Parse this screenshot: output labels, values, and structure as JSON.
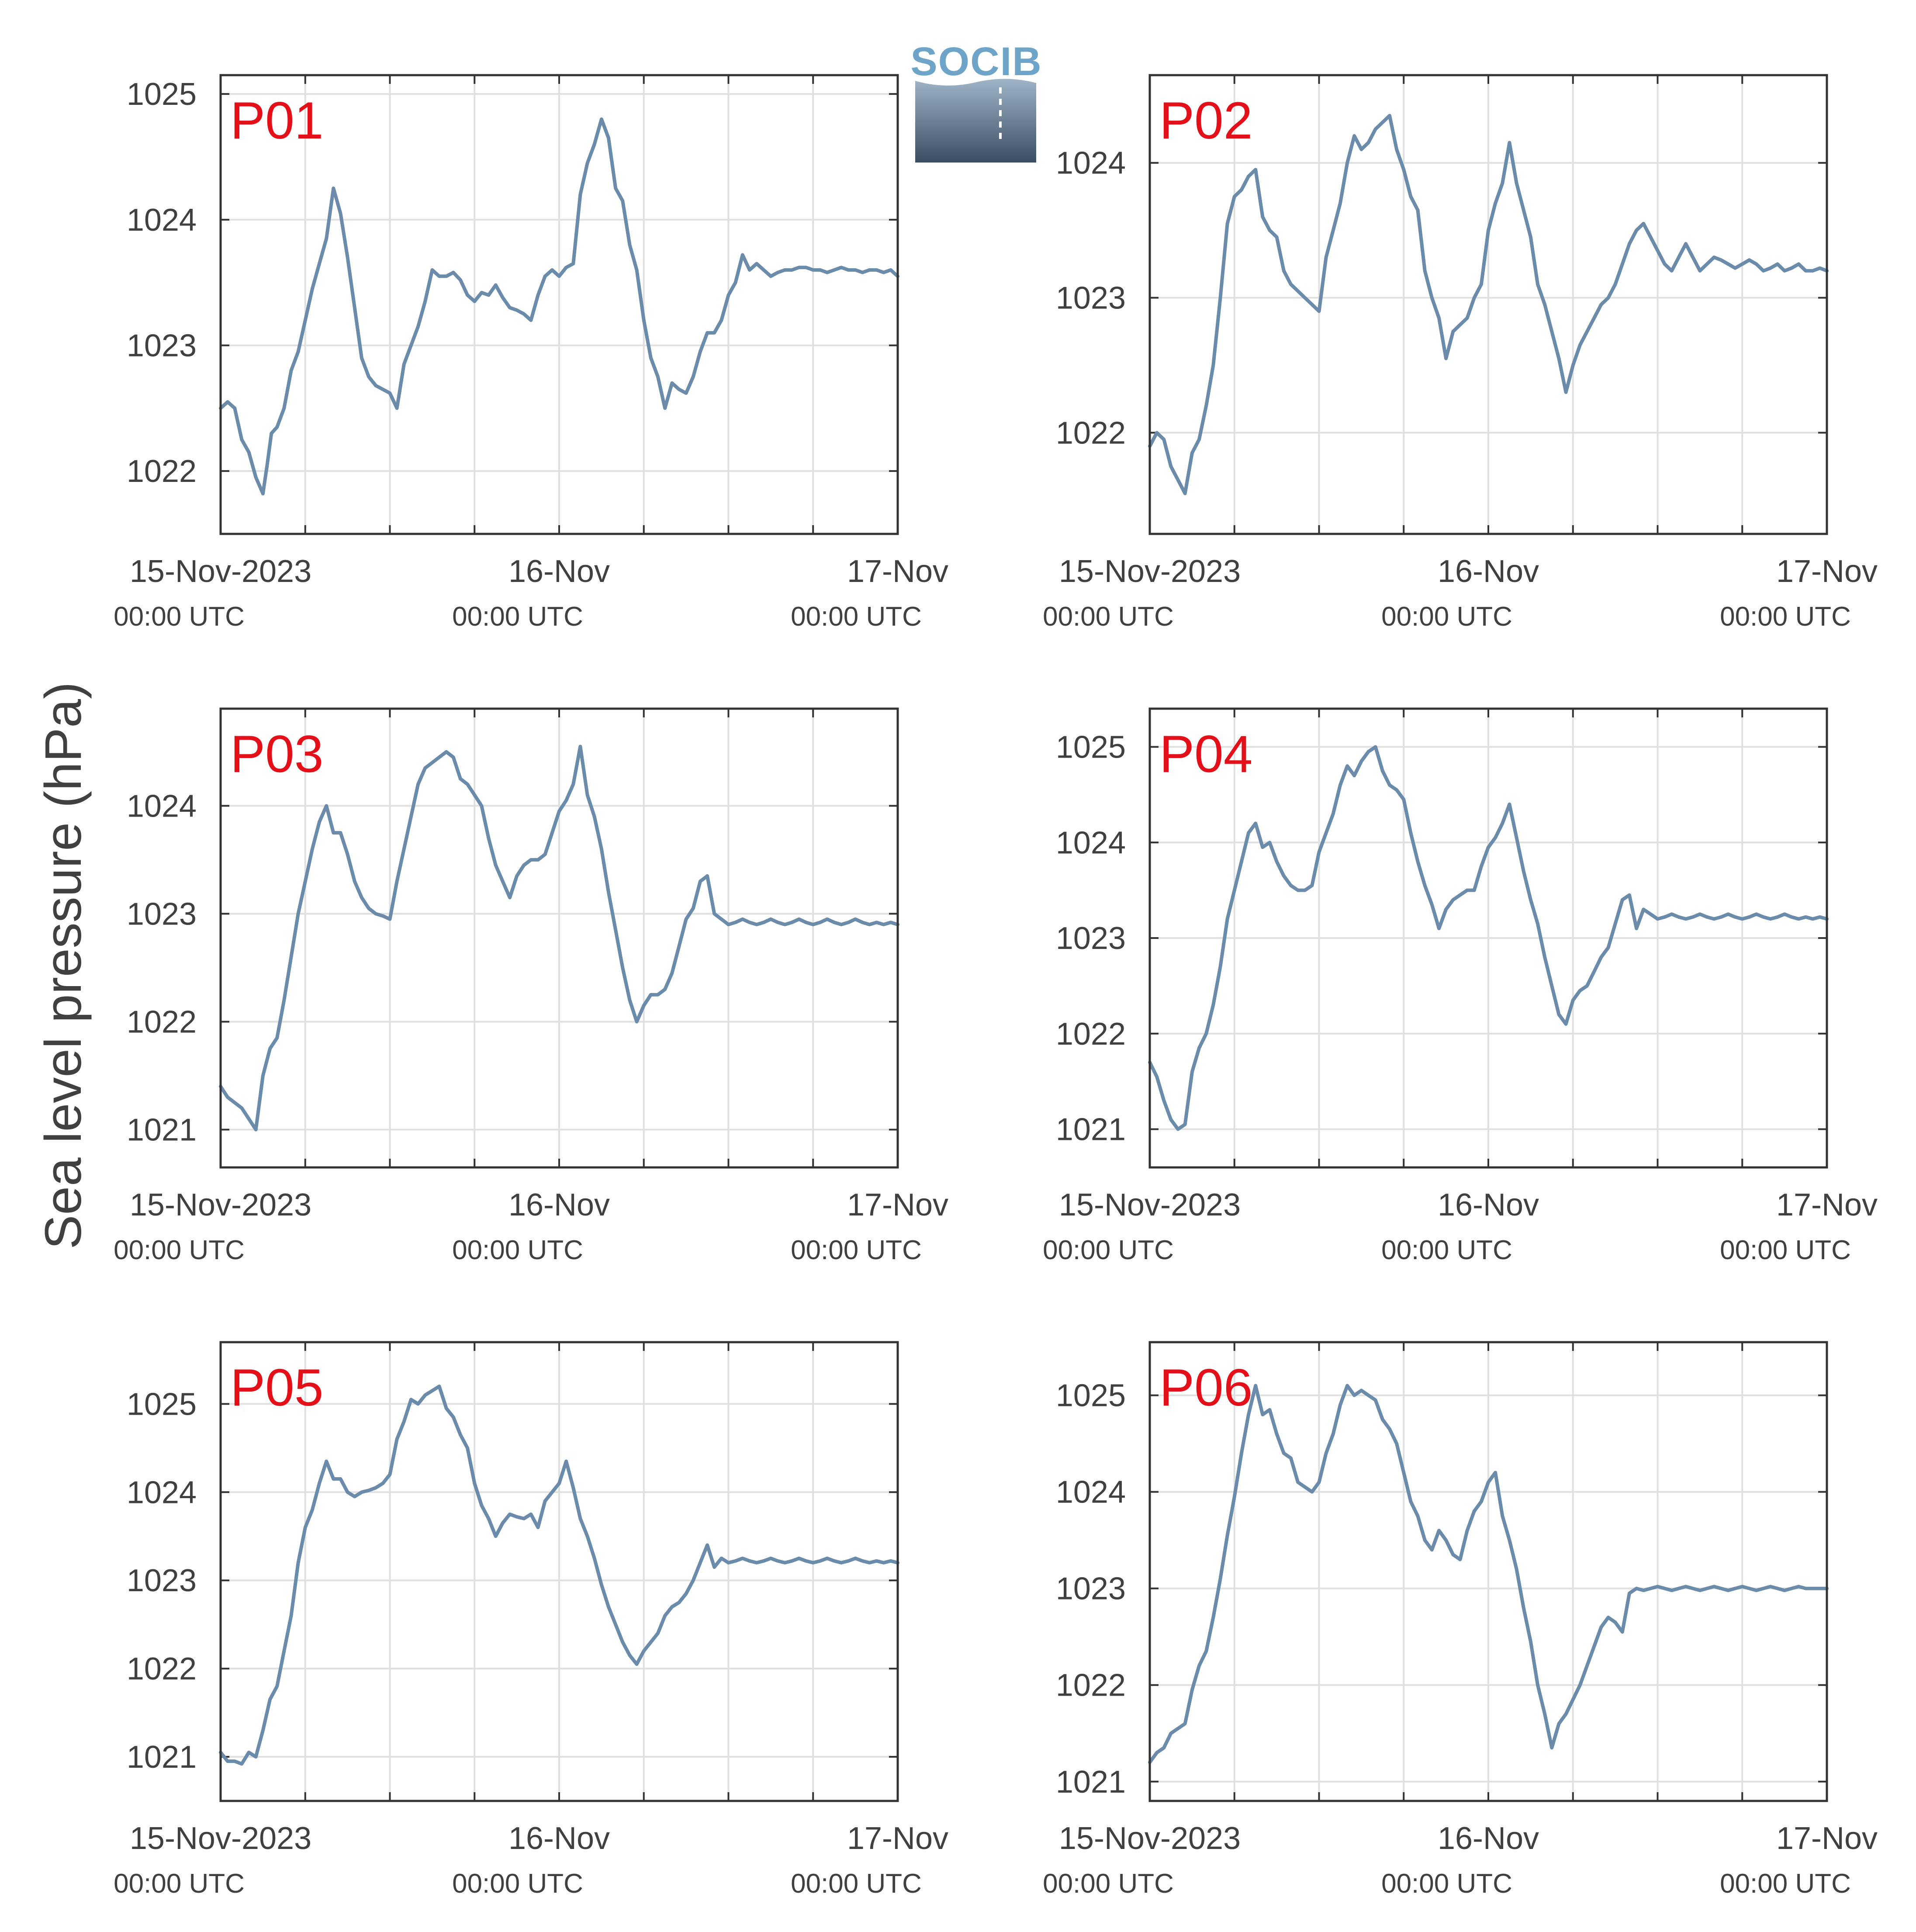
{
  "figure": {
    "ylabel": "Sea level pressure (hPa)",
    "logo_text": "SOCIB",
    "line_color": "#6b8bab",
    "tag_color": "#e3101a",
    "grid_color": "#e0e0e0",
    "frame_color": "#333333"
  },
  "x_ticks": [
    {
      "main": "15-Nov-2023",
      "sub": "00:00 UTC",
      "hour": 0
    },
    {
      "main": "16-Nov",
      "sub": "00:00 UTC",
      "hour": 24
    },
    {
      "main": "17-Nov",
      "sub": "00:00 UTC",
      "hour": 48
    }
  ],
  "chart_data": [
    {
      "type": "line",
      "title": "P01",
      "x_unit": "hours since 15-Nov-2023 00:00 UTC",
      "xlim": [
        0,
        48
      ],
      "ylim": [
        1021.5,
        1025.15
      ],
      "yticks": [
        1022,
        1023,
        1024,
        1025
      ],
      "x": [
        0,
        0.5,
        1,
        1.5,
        2,
        2.5,
        3,
        3.3,
        3.6,
        4,
        4.5,
        5,
        5.5,
        6,
        6.5,
        7,
        7.5,
        8,
        8.5,
        9,
        9.5,
        10,
        10.5,
        11,
        11.5,
        12,
        12.5,
        13,
        13.5,
        14,
        14.5,
        15,
        15.5,
        16,
        16.5,
        17,
        17.5,
        18,
        18.5,
        19,
        19.5,
        20,
        20.5,
        21,
        21.5,
        22,
        22.5,
        23,
        23.5,
        24,
        24.5,
        25,
        25.5,
        26,
        26.5,
        27,
        27.5,
        28,
        28.5,
        29,
        29.5,
        30,
        30.5,
        31,
        31.5,
        32,
        32.5,
        33,
        33.5,
        34,
        34.5,
        35,
        35.5,
        36,
        36.5,
        37,
        37.5,
        38,
        38.5,
        39,
        39.5,
        40,
        40.5,
        41,
        41.5,
        42,
        42.5,
        43,
        43.5,
        44,
        44.5,
        45,
        45.5,
        46,
        46.5,
        47,
        47.5,
        48
      ],
      "y": [
        1022.5,
        1022.55,
        1022.5,
        1022.25,
        1022.15,
        1021.95,
        1021.82,
        1022.05,
        1022.3,
        1022.35,
        1022.5,
        1022.8,
        1022.95,
        1023.2,
        1023.45,
        1023.65,
        1023.85,
        1024.25,
        1024.05,
        1023.7,
        1023.3,
        1022.9,
        1022.75,
        1022.68,
        1022.65,
        1022.62,
        1022.5,
        1022.85,
        1023.0,
        1023.15,
        1023.35,
        1023.6,
        1023.55,
        1023.55,
        1023.58,
        1023.52,
        1023.4,
        1023.35,
        1023.42,
        1023.4,
        1023.48,
        1023.38,
        1023.3,
        1023.28,
        1023.25,
        1023.2,
        1023.4,
        1023.55,
        1023.6,
        1023.55,
        1023.62,
        1023.65,
        1024.2,
        1024.45,
        1024.6,
        1024.8,
        1024.65,
        1024.25,
        1024.15,
        1023.8,
        1023.6,
        1023.2,
        1022.9,
        1022.75,
        1022.5,
        1022.7,
        1022.65,
        1022.62,
        1022.75,
        1022.95,
        1023.1,
        1023.1,
        1023.2,
        1023.4,
        1023.5,
        1023.72,
        1023.6,
        1023.65,
        1023.6,
        1023.55,
        1023.58,
        1023.6,
        1023.6,
        1023.62,
        1023.62,
        1023.6,
        1023.6,
        1023.58,
        1023.6,
        1023.62,
        1023.6,
        1023.6,
        1023.58,
        1023.6,
        1023.6,
        1023.58,
        1023.6,
        1023.55
      ]
    },
    {
      "type": "line",
      "title": "P02",
      "x_unit": "hours since 15-Nov-2023 00:00 UTC",
      "xlim": [
        0,
        48
      ],
      "ylim": [
        1021.25,
        1024.65
      ],
      "yticks": [
        1022,
        1023,
        1024
      ],
      "x": [
        0,
        0.5,
        1,
        1.5,
        2,
        2.5,
        3,
        3.5,
        4,
        4.5,
        5,
        5.5,
        6,
        6.5,
        7,
        7.5,
        8,
        8.5,
        9,
        9.5,
        10,
        10.5,
        11,
        11.5,
        12,
        12.5,
        13,
        13.5,
        14,
        14.5,
        15,
        15.5,
        16,
        16.5,
        17,
        17.5,
        18,
        18.5,
        19,
        19.5,
        20,
        20.5,
        21,
        21.5,
        22,
        22.5,
        23,
        23.5,
        24,
        24.5,
        25,
        25.5,
        26,
        26.5,
        27,
        27.5,
        28,
        28.5,
        29,
        29.5,
        30,
        30.5,
        31,
        31.5,
        32,
        32.5,
        33,
        33.5,
        34,
        34.5,
        35,
        35.5,
        36,
        36.5,
        37,
        37.5,
        38,
        38.5,
        39,
        39.5,
        40,
        40.5,
        41,
        41.5,
        42,
        42.5,
        43,
        43.5,
        44,
        44.5,
        45,
        45.5,
        46,
        46.5,
        47,
        47.5,
        48
      ],
      "y": [
        1021.9,
        1022.0,
        1021.95,
        1021.75,
        1021.65,
        1021.55,
        1021.85,
        1021.95,
        1022.2,
        1022.5,
        1023.0,
        1023.55,
        1023.75,
        1023.8,
        1023.9,
        1023.95,
        1023.6,
        1023.5,
        1023.45,
        1023.2,
        1023.1,
        1023.05,
        1023.0,
        1022.95,
        1022.9,
        1023.3,
        1023.5,
        1023.7,
        1024.0,
        1024.2,
        1024.1,
        1024.15,
        1024.25,
        1024.3,
        1024.35,
        1024.1,
        1023.95,
        1023.75,
        1023.65,
        1023.2,
        1023.0,
        1022.85,
        1022.55,
        1022.75,
        1022.8,
        1022.85,
        1023.0,
        1023.1,
        1023.5,
        1023.7,
        1023.85,
        1024.15,
        1023.85,
        1023.65,
        1023.45,
        1023.1,
        1022.95,
        1022.75,
        1022.55,
        1022.3,
        1022.5,
        1022.65,
        1022.75,
        1022.85,
        1022.95,
        1023.0,
        1023.1,
        1023.25,
        1023.4,
        1023.5,
        1023.55,
        1023.45,
        1023.35,
        1023.25,
        1023.2,
        1023.3,
        1023.4,
        1023.3,
        1023.2,
        1023.25,
        1023.3,
        1023.28,
        1023.25,
        1023.22,
        1023.25,
        1023.28,
        1023.25,
        1023.2,
        1023.22,
        1023.25,
        1023.2,
        1023.22,
        1023.25,
        1023.2,
        1023.2,
        1023.22,
        1023.2
      ]
    },
    {
      "type": "line",
      "title": "P03",
      "x_unit": "hours since 15-Nov-2023 00:00 UTC",
      "xlim": [
        0,
        48
      ],
      "ylim": [
        1020.65,
        1024.9
      ],
      "yticks": [
        1021,
        1022,
        1023,
        1024
      ],
      "x": [
        0,
        0.5,
        1,
        1.5,
        2,
        2.5,
        3,
        3.5,
        4,
        4.5,
        5,
        5.5,
        6,
        6.5,
        7,
        7.5,
        8,
        8.5,
        9,
        9.5,
        10,
        10.5,
        11,
        11.5,
        12,
        12.5,
        13,
        13.5,
        14,
        14.5,
        15,
        15.5,
        16,
        16.5,
        17,
        17.5,
        18,
        18.5,
        19,
        19.5,
        20,
        20.5,
        21,
        21.5,
        22,
        22.5,
        23,
        23.5,
        24,
        24.5,
        25,
        25.5,
        26,
        26.5,
        27,
        27.5,
        28,
        28.5,
        29,
        29.5,
        30,
        30.5,
        31,
        31.5,
        32,
        32.5,
        33,
        33.5,
        34,
        34.5,
        35,
        35.5,
        36,
        36.5,
        37,
        37.5,
        38,
        38.5,
        39,
        39.5,
        40,
        40.5,
        41,
        41.5,
        42,
        42.5,
        43,
        43.5,
        44,
        44.5,
        45,
        45.5,
        46,
        46.5,
        47,
        47.5,
        48
      ],
      "y": [
        1021.4,
        1021.3,
        1021.25,
        1021.2,
        1021.1,
        1021.0,
        1021.5,
        1021.75,
        1021.85,
        1022.2,
        1022.6,
        1023.0,
        1023.3,
        1023.6,
        1023.85,
        1024.0,
        1023.75,
        1023.75,
        1023.55,
        1023.3,
        1023.15,
        1023.05,
        1023.0,
        1022.98,
        1022.95,
        1023.3,
        1023.6,
        1023.9,
        1024.2,
        1024.35,
        1024.4,
        1024.45,
        1024.5,
        1024.45,
        1024.25,
        1024.2,
        1024.1,
        1024.0,
        1023.7,
        1023.45,
        1023.3,
        1023.15,
        1023.35,
        1023.45,
        1023.5,
        1023.5,
        1023.55,
        1023.75,
        1023.95,
        1024.05,
        1024.2,
        1024.55,
        1024.1,
        1023.9,
        1023.6,
        1023.2,
        1022.85,
        1022.5,
        1022.2,
        1022.0,
        1022.15,
        1022.25,
        1022.25,
        1022.3,
        1022.45,
        1022.7,
        1022.95,
        1023.05,
        1023.3,
        1023.35,
        1023.0,
        1022.95,
        1022.9,
        1022.92,
        1022.95,
        1022.92,
        1022.9,
        1022.92,
        1022.95,
        1022.92,
        1022.9,
        1022.92,
        1022.95,
        1022.92,
        1022.9,
        1022.92,
        1022.95,
        1022.92,
        1022.9,
        1022.92,
        1022.95,
        1022.92,
        1022.9,
        1022.92,
        1022.9,
        1022.92,
        1022.9
      ]
    },
    {
      "type": "line",
      "title": "P04",
      "x_unit": "hours since 15-Nov-2023 00:00 UTC",
      "xlim": [
        0,
        48
      ],
      "ylim": [
        1020.6,
        1025.4
      ],
      "yticks": [
        1021,
        1022,
        1023,
        1024,
        1025
      ],
      "x": [
        0,
        0.5,
        1,
        1.5,
        2,
        2.5,
        3,
        3.5,
        4,
        4.5,
        5,
        5.5,
        6,
        6.5,
        7,
        7.5,
        8,
        8.5,
        9,
        9.5,
        10,
        10.5,
        11,
        11.5,
        12,
        12.5,
        13,
        13.5,
        14,
        14.5,
        15,
        15.5,
        16,
        16.5,
        17,
        17.5,
        18,
        18.5,
        19,
        19.5,
        20,
        20.5,
        21,
        21.5,
        22,
        22.5,
        23,
        23.5,
        24,
        24.5,
        25,
        25.5,
        26,
        26.5,
        27,
        27.5,
        28,
        28.5,
        29,
        29.5,
        30,
        30.5,
        31,
        31.5,
        32,
        32.5,
        33,
        33.5,
        34,
        34.5,
        35,
        35.5,
        36,
        36.5,
        37,
        37.5,
        38,
        38.5,
        39,
        39.5,
        40,
        40.5,
        41,
        41.5,
        42,
        42.5,
        43,
        43.5,
        44,
        44.5,
        45,
        45.5,
        46,
        46.5,
        47,
        47.5,
        48
      ],
      "y": [
        1021.7,
        1021.55,
        1021.3,
        1021.1,
        1021.0,
        1021.05,
        1021.6,
        1021.85,
        1022.0,
        1022.3,
        1022.7,
        1023.2,
        1023.5,
        1023.8,
        1024.1,
        1024.2,
        1023.95,
        1024.0,
        1023.8,
        1023.65,
        1023.55,
        1023.5,
        1023.5,
        1023.55,
        1023.9,
        1024.1,
        1024.3,
        1024.6,
        1024.8,
        1024.7,
        1024.85,
        1024.95,
        1025.0,
        1024.75,
        1024.6,
        1024.55,
        1024.45,
        1024.1,
        1023.8,
        1023.55,
        1023.35,
        1023.1,
        1023.3,
        1023.4,
        1023.45,
        1023.5,
        1023.5,
        1023.75,
        1023.95,
        1024.05,
        1024.2,
        1024.4,
        1024.05,
        1023.7,
        1023.4,
        1023.15,
        1022.8,
        1022.5,
        1022.2,
        1022.1,
        1022.35,
        1022.45,
        1022.5,
        1022.65,
        1022.8,
        1022.9,
        1023.15,
        1023.4,
        1023.45,
        1023.1,
        1023.3,
        1023.25,
        1023.2,
        1023.22,
        1023.25,
        1023.22,
        1023.2,
        1023.22,
        1023.25,
        1023.22,
        1023.2,
        1023.22,
        1023.25,
        1023.22,
        1023.2,
        1023.22,
        1023.25,
        1023.22,
        1023.2,
        1023.22,
        1023.25,
        1023.22,
        1023.2,
        1023.22,
        1023.2,
        1023.22,
        1023.2
      ]
    },
    {
      "type": "line",
      "title": "P05",
      "x_unit": "hours since 15-Nov-2023 00:00 UTC",
      "xlim": [
        0,
        48
      ],
      "ylim": [
        1020.5,
        1025.7
      ],
      "yticks": [
        1021,
        1022,
        1023,
        1024,
        1025
      ],
      "x": [
        0,
        0.5,
        1,
        1.5,
        2,
        2.5,
        3,
        3.5,
        4,
        4.5,
        5,
        5.5,
        6,
        6.5,
        7,
        7.5,
        8,
        8.5,
        9,
        9.5,
        10,
        10.5,
        11,
        11.5,
        12,
        12.5,
        13,
        13.5,
        14,
        14.5,
        15,
        15.5,
        16,
        16.5,
        17,
        17.5,
        18,
        18.5,
        19,
        19.5,
        20,
        20.5,
        21,
        21.5,
        22,
        22.5,
        23,
        23.5,
        24,
        24.5,
        25,
        25.5,
        26,
        26.5,
        27,
        27.5,
        28,
        28.5,
        29,
        29.5,
        30,
        30.5,
        31,
        31.5,
        32,
        32.5,
        33,
        33.5,
        34,
        34.5,
        35,
        35.5,
        36,
        36.5,
        37,
        37.5,
        38,
        38.5,
        39,
        39.5,
        40,
        40.5,
        41,
        41.5,
        42,
        42.5,
        43,
        43.5,
        44,
        44.5,
        45,
        45.5,
        46,
        46.5,
        47,
        47.5,
        48
      ],
      "y": [
        1021.05,
        1020.95,
        1020.95,
        1020.92,
        1021.05,
        1021.0,
        1021.3,
        1021.65,
        1021.8,
        1022.2,
        1022.6,
        1023.2,
        1023.6,
        1023.8,
        1024.1,
        1024.35,
        1024.15,
        1024.15,
        1024.0,
        1023.95,
        1024.0,
        1024.02,
        1024.05,
        1024.1,
        1024.2,
        1024.6,
        1024.8,
        1025.05,
        1025.0,
        1025.1,
        1025.15,
        1025.2,
        1024.95,
        1024.85,
        1024.65,
        1024.5,
        1024.1,
        1023.85,
        1023.7,
        1023.5,
        1023.65,
        1023.75,
        1023.72,
        1023.7,
        1023.75,
        1023.6,
        1023.9,
        1024.0,
        1024.1,
        1024.35,
        1024.05,
        1023.7,
        1023.5,
        1023.25,
        1022.95,
        1022.7,
        1022.5,
        1022.3,
        1022.15,
        1022.05,
        1022.2,
        1022.3,
        1022.4,
        1022.6,
        1022.7,
        1022.75,
        1022.85,
        1023.0,
        1023.2,
        1023.4,
        1023.15,
        1023.25,
        1023.2,
        1023.22,
        1023.25,
        1023.22,
        1023.2,
        1023.22,
        1023.25,
        1023.22,
        1023.2,
        1023.22,
        1023.25,
        1023.22,
        1023.2,
        1023.22,
        1023.25,
        1023.22,
        1023.2,
        1023.22,
        1023.25,
        1023.22,
        1023.2,
        1023.22,
        1023.2,
        1023.22,
        1023.2
      ]
    },
    {
      "type": "line",
      "title": "P06",
      "x_unit": "hours since 15-Nov-2023 00:00 UTC",
      "xlim": [
        0,
        48
      ],
      "ylim": [
        1020.8,
        1025.55
      ],
      "yticks": [
        1021,
        1022,
        1023,
        1024,
        1025
      ],
      "x": [
        0,
        0.5,
        1,
        1.5,
        2,
        2.5,
        3,
        3.5,
        4,
        4.5,
        5,
        5.5,
        6,
        6.5,
        7,
        7.5,
        8,
        8.5,
        9,
        9.5,
        10,
        10.5,
        11,
        11.5,
        12,
        12.5,
        13,
        13.5,
        14,
        14.5,
        15,
        15.5,
        16,
        16.5,
        17,
        17.5,
        18,
        18.5,
        19,
        19.5,
        20,
        20.5,
        21,
        21.5,
        22,
        22.5,
        23,
        23.5,
        24,
        24.5,
        25,
        25.5,
        26,
        26.5,
        27,
        27.5,
        28,
        28.5,
        29,
        29.5,
        30,
        30.5,
        31,
        31.5,
        32,
        32.5,
        33,
        33.5,
        34,
        34.5,
        35,
        35.5,
        36,
        36.5,
        37,
        37.5,
        38,
        38.5,
        39,
        39.5,
        40,
        40.5,
        41,
        41.5,
        42,
        42.5,
        43,
        43.5,
        44,
        44.5,
        45,
        45.5,
        46,
        46.5,
        47,
        47.5,
        48
      ],
      "y": [
        1021.2,
        1021.3,
        1021.35,
        1021.5,
        1021.55,
        1021.6,
        1021.95,
        1022.2,
        1022.35,
        1022.7,
        1023.1,
        1023.55,
        1023.95,
        1024.4,
        1024.8,
        1025.1,
        1024.8,
        1024.85,
        1024.6,
        1024.4,
        1024.35,
        1024.1,
        1024.05,
        1024.0,
        1024.1,
        1024.4,
        1024.6,
        1024.9,
        1025.1,
        1025.0,
        1025.05,
        1025.0,
        1024.95,
        1024.75,
        1024.65,
        1024.5,
        1024.2,
        1023.9,
        1023.75,
        1023.5,
        1023.4,
        1023.6,
        1023.5,
        1023.35,
        1023.3,
        1023.6,
        1023.8,
        1023.9,
        1024.1,
        1024.2,
        1023.75,
        1023.5,
        1023.2,
        1022.8,
        1022.45,
        1022.0,
        1021.7,
        1021.35,
        1021.6,
        1021.7,
        1021.85,
        1022.0,
        1022.2,
        1022.4,
        1022.6,
        1022.7,
        1022.65,
        1022.55,
        1022.95,
        1023.0,
        1022.98,
        1023.0,
        1023.02,
        1023.0,
        1022.98,
        1023.0,
        1023.02,
        1023.0,
        1022.98,
        1023.0,
        1023.02,
        1023.0,
        1022.98,
        1023.0,
        1023.02,
        1023.0,
        1022.98,
        1023.0,
        1023.02,
        1023.0,
        1022.98,
        1023.0,
        1023.02,
        1023.0,
        1023.0,
        1023.0,
        1023.0
      ]
    }
  ]
}
